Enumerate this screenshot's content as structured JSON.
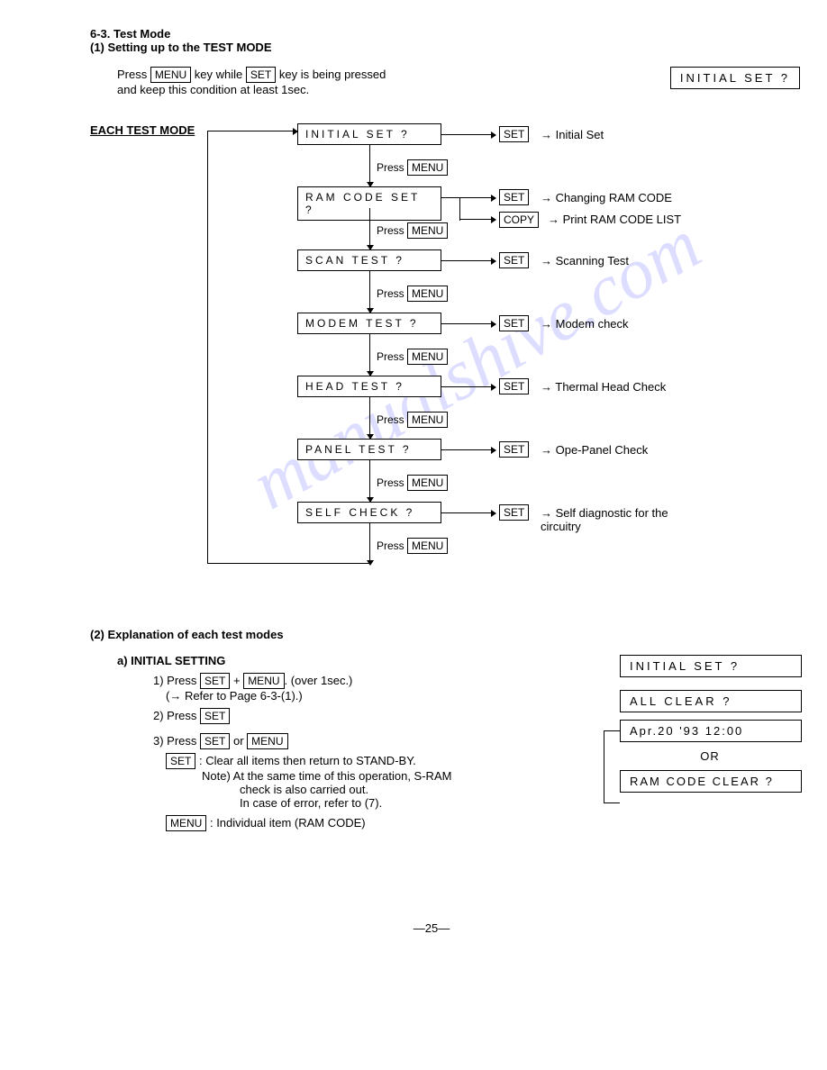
{
  "header": {
    "section_num": "6-3. Test Mode",
    "sub1": "(1) Setting up to the TEST MODE"
  },
  "intro": {
    "l1a": "Press ",
    "key1": "MENU",
    "l1b": " key while ",
    "key2": "SET",
    "l1c": " key is being pressed",
    "l2": "and keep this condition at least 1sec."
  },
  "top_display": "INITIAL SET ?",
  "etm": "EACH TEST MODE",
  "nodes": [
    {
      "label": "INITIAL SET ?",
      "key": "SET",
      "desc": "→ Initial Set",
      "press": "Press ",
      "pkey": "MENU"
    },
    {
      "label": "RAM CODE SET ?",
      "key": "SET",
      "desc": "→ Changing RAM CODE",
      "press": "Press ",
      "pkey": "MENU",
      "extra_key": "COPY",
      "extra_desc": "→ Print RAM CODE LIST"
    },
    {
      "label": "SCAN TEST ?",
      "key": "SET",
      "desc": "→ Scanning Test",
      "press": "Press ",
      "pkey": "MENU"
    },
    {
      "label": "MODEM TEST ?",
      "key": "SET",
      "desc": "→ Modem check",
      "press": "Press ",
      "pkey": "MENU"
    },
    {
      "label": "HEAD TEST ?",
      "key": "SET",
      "desc": "→ Thermal Head Check",
      "press": "Press ",
      "pkey": "MENU"
    },
    {
      "label": "PANEL TEST ?",
      "key": "SET",
      "desc": "→ Ope-Panel Check",
      "press": "Press ",
      "pkey": "MENU"
    },
    {
      "label": "SELF CHECK ?",
      "key": "SET",
      "desc": "→ Self diagnostic for the circuitry",
      "press": "Press ",
      "pkey": "MENU"
    }
  ],
  "sec2": {
    "title": "(2)  Explanation of each test modes",
    "sub": "a) INITIAL SETTING",
    "s1a": "1) Press ",
    "s1k1": "SET",
    "s1b": " + ",
    "s1k2": "MENU",
    "s1c": ". (over 1sec.)",
    "s1d": "(→ Refer to Page 6-3-(1).)",
    "s2a": "2) Press ",
    "s2k": "SET",
    "s3a": "3) Press ",
    "s3k1": "SET",
    "s3b": " or ",
    "s3k2": "MENU",
    "s3ck": "SET",
    "s3c": ": Clear all items then return to STAND-BY.",
    "s3d": "Note)  At the same time of this operation, S-RAM",
    "s3e": "check is also carried out.",
    "s3f": "In case of error, refer to (7).",
    "s3gk": "MENU",
    "s3g": ": Individual item (RAM CODE)"
  },
  "rboxes": {
    "b1": "INITIAL SET ?",
    "b2": "ALL CLEAR ?",
    "b3": "Apr.20 '93 12:00",
    "or": "OR",
    "b4": "RAM CODE CLEAR ?"
  },
  "watermark": "manualshive.com",
  "pagenum": "—25—"
}
